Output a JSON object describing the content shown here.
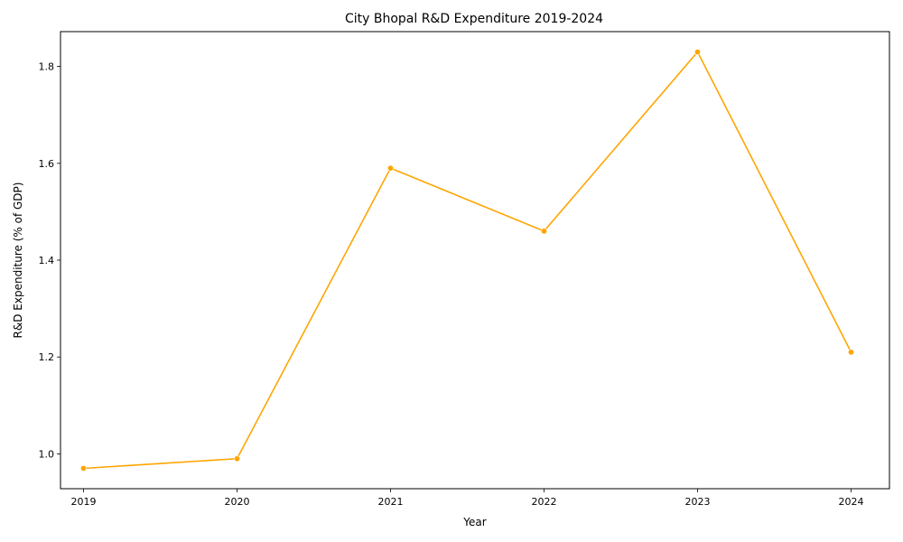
{
  "chart_data": {
    "type": "line",
    "title": "City Bhopal R&D Expenditure 2019-2024",
    "xlabel": "Year",
    "ylabel": "R&D Expenditure (% of GDP)",
    "x": [
      2019,
      2020,
      2021,
      2022,
      2023,
      2024
    ],
    "x_tick_labels": [
      "2019",
      "2020",
      "2021",
      "2022",
      "2023",
      "2024"
    ],
    "series": [
      {
        "values": [
          0.97,
          0.99,
          1.59,
          1.46,
          1.83,
          1.21
        ],
        "color": "#FFA500"
      }
    ],
    "xlim": [
      2018.85,
      2024.25
    ],
    "ylim": [
      0.928,
      1.872
    ],
    "y_ticks": [
      1.0,
      1.2,
      1.4,
      1.6,
      1.8
    ],
    "y_tick_labels": [
      "1.0",
      "1.2",
      "1.4",
      "1.6",
      "1.8"
    ],
    "grid": false,
    "markers": true
  }
}
